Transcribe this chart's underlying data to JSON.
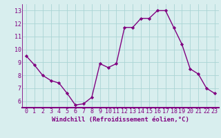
{
  "x": [
    0,
    1,
    2,
    3,
    4,
    5,
    6,
    7,
    8,
    9,
    10,
    11,
    12,
    13,
    14,
    15,
    16,
    17,
    18,
    19,
    20,
    21,
    22,
    23
  ],
  "y": [
    9.5,
    8.8,
    8.0,
    7.6,
    7.4,
    6.6,
    5.7,
    5.8,
    6.3,
    8.9,
    8.6,
    8.9,
    11.7,
    11.7,
    12.4,
    12.4,
    13.0,
    13.0,
    11.7,
    10.4,
    8.5,
    8.1,
    7.0,
    6.6
  ],
  "line_color": "#800080",
  "marker": "D",
  "marker_size": 2.2,
  "bg_color": "#d8eeee",
  "grid_color": "#aad4d4",
  "xlabel": "Windchill (Refroidissement éolien,°C)",
  "xlim": [
    -0.5,
    23.5
  ],
  "ylim": [
    5.5,
    13.5
  ],
  "yticks": [
    6,
    7,
    8,
    9,
    10,
    11,
    12,
    13
  ],
  "xticks": [
    0,
    1,
    2,
    3,
    4,
    5,
    6,
    7,
    8,
    9,
    10,
    11,
    12,
    13,
    14,
    15,
    16,
    17,
    18,
    19,
    20,
    21,
    22,
    23
  ],
  "line_width": 1.0,
  "xlabel_fontsize": 6.5,
  "tick_fontsize": 6.0,
  "spine_color": "#800080",
  "bottom_spine_color": "#800080"
}
